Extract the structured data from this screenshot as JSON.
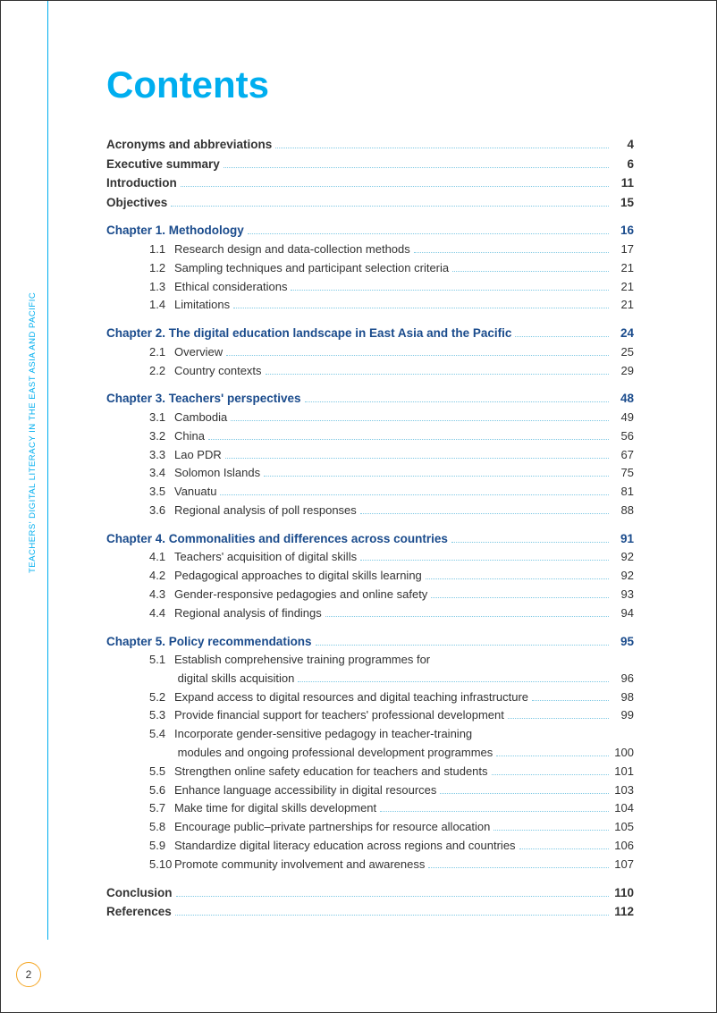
{
  "side_label": "TEACHERS' DIGITAL LITERACY IN THE EAST ASIA AND PACIFIC",
  "page_number": "2",
  "title": "Contents",
  "entries": [
    {
      "type": "bold",
      "label": "Acronyms and abbreviations",
      "page": "4"
    },
    {
      "type": "bold",
      "label": "Executive summary",
      "page": "6"
    },
    {
      "type": "bold",
      "label": "Introduction",
      "page": "11"
    },
    {
      "type": "bold",
      "label": "Objectives",
      "page": "15"
    },
    {
      "type": "chapter",
      "label": "Chapter 1. Methodology",
      "page": "16"
    },
    {
      "type": "sub",
      "num": "1.1",
      "label": "Research design and data-collection methods",
      "page": "17"
    },
    {
      "type": "sub",
      "num": "1.2",
      "label": "Sampling techniques and participant selection criteria",
      "page": "21"
    },
    {
      "type": "sub",
      "num": "1.3",
      "label": "Ethical considerations",
      "page": "21"
    },
    {
      "type": "sub",
      "num": "1.4",
      "label": "Limitations",
      "page": "21"
    },
    {
      "type": "chapter",
      "label": "Chapter 2. The digital education landscape in East Asia and the Pacific",
      "page": "24"
    },
    {
      "type": "sub",
      "num": "2.1",
      "label": "Overview",
      "page": "25"
    },
    {
      "type": "sub",
      "num": "2.2",
      "label": "Country contexts",
      "page": "29"
    },
    {
      "type": "chapter",
      "label": "Chapter 3. Teachers' perspectives",
      "page": "48"
    },
    {
      "type": "sub",
      "num": "3.1",
      "label": "Cambodia",
      "page": "49"
    },
    {
      "type": "sub",
      "num": "3.2",
      "label": "China",
      "page": "56"
    },
    {
      "type": "sub",
      "num": "3.3",
      "label": "Lao PDR",
      "page": "67"
    },
    {
      "type": "sub",
      "num": "3.4",
      "label": "Solomon Islands",
      "page": "75"
    },
    {
      "type": "sub",
      "num": "3.5",
      "label": "Vanuatu",
      "page": "81"
    },
    {
      "type": "sub",
      "num": "3.6",
      "label": "Regional analysis of poll responses",
      "page": "88"
    },
    {
      "type": "chapter",
      "label": "Chapter 4. Commonalities and differences across countries",
      "page": "91"
    },
    {
      "type": "sub",
      "num": "4.1",
      "label": "Teachers' acquisition of digital skills",
      "page": "92"
    },
    {
      "type": "sub",
      "num": "4.2",
      "label": "Pedagogical approaches to digital skills learning",
      "page": "92"
    },
    {
      "type": "sub",
      "num": "4.3",
      "label": "Gender-responsive pedagogies and online safety",
      "page": "93"
    },
    {
      "type": "sub",
      "num": "4.4",
      "label": "Regional analysis of findings",
      "page": "94"
    },
    {
      "type": "chapter",
      "label": "Chapter 5. Policy recommendations",
      "page": "95"
    },
    {
      "type": "sub-multi",
      "num": "5.1",
      "label1": "Establish comprehensive training programmes for",
      "label2": "digital skills acquisition",
      "page": "96"
    },
    {
      "type": "sub",
      "num": "5.2",
      "label": "Expand access to digital resources and digital teaching infrastructure",
      "page": "98"
    },
    {
      "type": "sub",
      "num": "5.3",
      "label": "Provide financial support for teachers' professional development",
      "page": "99"
    },
    {
      "type": "sub-multi",
      "num": "5.4",
      "label1": "Incorporate gender-sensitive pedagogy in teacher-training",
      "label2": "modules and ongoing professional development programmes",
      "page": "100"
    },
    {
      "type": "sub",
      "num": "5.5",
      "label": "Strengthen online safety education for teachers and students",
      "page": "101"
    },
    {
      "type": "sub",
      "num": "5.6",
      "label": "Enhance language accessibility in digital resources",
      "page": "103"
    },
    {
      "type": "sub",
      "num": "5.7",
      "label": "Make time for digital skills development",
      "page": "104"
    },
    {
      "type": "sub",
      "num": "5.8",
      "label": "Encourage public–private partnerships for resource allocation",
      "page": "105"
    },
    {
      "type": "sub",
      "num": "5.9",
      "label": "Standardize digital literacy education across regions and countries",
      "page": "106"
    },
    {
      "type": "sub",
      "num": "5.10",
      "label": "Promote community involvement and awareness",
      "page": "107"
    },
    {
      "type": "bold",
      "label": "Conclusion",
      "page": "110",
      "gap": true
    },
    {
      "type": "bold",
      "label": "References",
      "page": "112"
    }
  ]
}
